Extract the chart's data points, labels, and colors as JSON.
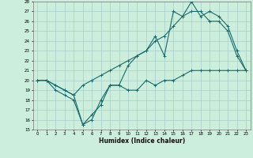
{
  "xlabel": "Humidex (Indice chaleur)",
  "xlim": [
    -0.5,
    23.5
  ],
  "ylim": [
    15,
    28
  ],
  "yticks": [
    15,
    16,
    17,
    18,
    19,
    20,
    21,
    22,
    23,
    24,
    25,
    26,
    27,
    28
  ],
  "xticks": [
    0,
    1,
    2,
    3,
    4,
    5,
    6,
    7,
    8,
    9,
    10,
    11,
    12,
    13,
    14,
    15,
    16,
    17,
    18,
    19,
    20,
    21,
    22,
    23
  ],
  "bg_color": "#cceedd",
  "grid_color": "#aacccc",
  "line_color": "#1a6b6b",
  "line1_x": [
    0,
    1,
    2,
    3,
    4,
    5,
    6,
    7,
    8,
    9,
    10,
    11,
    12,
    13,
    14,
    15,
    16,
    17,
    18,
    19,
    20,
    21,
    22,
    23
  ],
  "line1_y": [
    20.0,
    20.0,
    19.0,
    18.5,
    18.0,
    15.5,
    16.5,
    17.5,
    19.5,
    19.5,
    19.0,
    19.0,
    20.0,
    19.5,
    20.0,
    20.0,
    20.5,
    21.0,
    21.0,
    21.0,
    21.0,
    21.0,
    21.0,
    21.0
  ],
  "line2_x": [
    0,
    1,
    2,
    3,
    4,
    5,
    6,
    7,
    8,
    9,
    10,
    11,
    12,
    13,
    14,
    15,
    16,
    17,
    18,
    19,
    20,
    21,
    22,
    23
  ],
  "line2_y": [
    20.0,
    20.0,
    19.5,
    19.0,
    18.5,
    19.5,
    20.0,
    20.5,
    21.0,
    21.5,
    22.0,
    22.5,
    23.0,
    24.0,
    24.5,
    25.5,
    26.5,
    27.0,
    27.0,
    26.0,
    26.0,
    25.0,
    22.5,
    21.0
  ],
  "line3_x": [
    0,
    1,
    2,
    3,
    4,
    5,
    6,
    7,
    8,
    9,
    10,
    11,
    12,
    13,
    14,
    15,
    16,
    17,
    18,
    19,
    20,
    21,
    22,
    23
  ],
  "line3_y": [
    20.0,
    20.0,
    19.5,
    19.0,
    18.5,
    15.5,
    16.0,
    18.0,
    19.5,
    19.5,
    21.5,
    22.5,
    23.0,
    24.5,
    22.5,
    27.0,
    26.5,
    28.0,
    26.5,
    27.0,
    26.5,
    25.5,
    23.0,
    21.0
  ]
}
